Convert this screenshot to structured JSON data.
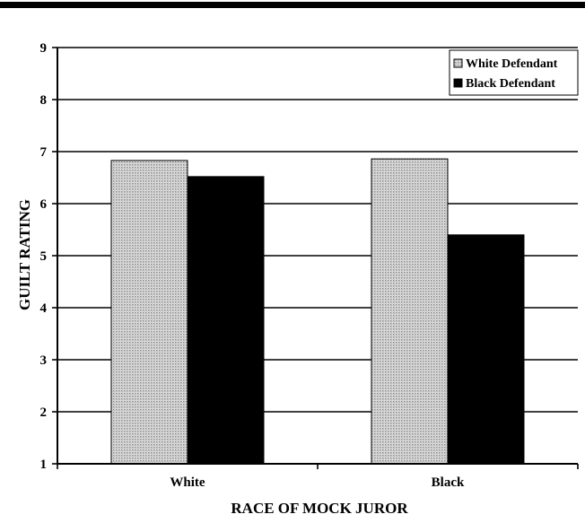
{
  "chart_data": {
    "type": "bar",
    "title": "",
    "xlabel": "RACE OF MOCK JUROR",
    "ylabel": "GUILT RATING",
    "categories": [
      "White",
      "Black"
    ],
    "series": [
      {
        "name": "White Defendant",
        "values": [
          6.83,
          6.86
        ],
        "color": "#c4c4c4",
        "pattern": "dotted"
      },
      {
        "name": "Black Defendant",
        "values": [
          6.52,
          5.4
        ],
        "color": "#000000",
        "pattern": "solid"
      }
    ],
    "ylim": [
      1,
      9
    ],
    "yticks": [
      "1",
      "2",
      "3",
      "4",
      "5",
      "6",
      "7",
      "8",
      "9"
    ],
    "grid": true,
    "legend_position": "top-right"
  }
}
